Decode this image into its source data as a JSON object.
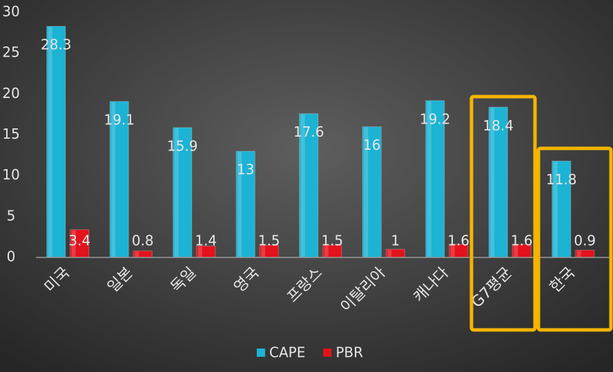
{
  "chart_data": {
    "type": "bar",
    "categories": [
      "미국",
      "일본",
      "독일",
      "영국",
      "프랑스",
      "이탈리아",
      "캐나다",
      "G7평균",
      "한국"
    ],
    "series": [
      {
        "name": "CAPE",
        "color": "#1cb3d4",
        "values": [
          28.3,
          19.1,
          15.9,
          13,
          17.6,
          16,
          19.2,
          18.4,
          11.8
        ]
      },
      {
        "name": "PBR",
        "color": "#e3121c",
        "values": [
          3.4,
          0.8,
          1.4,
          1.5,
          1.5,
          1,
          1.6,
          1.6,
          0.9
        ]
      }
    ],
    "ylim": [
      0,
      30
    ],
    "yticks": [
      0,
      5,
      10,
      15,
      20,
      25,
      30
    ],
    "grid": false
  }
}
